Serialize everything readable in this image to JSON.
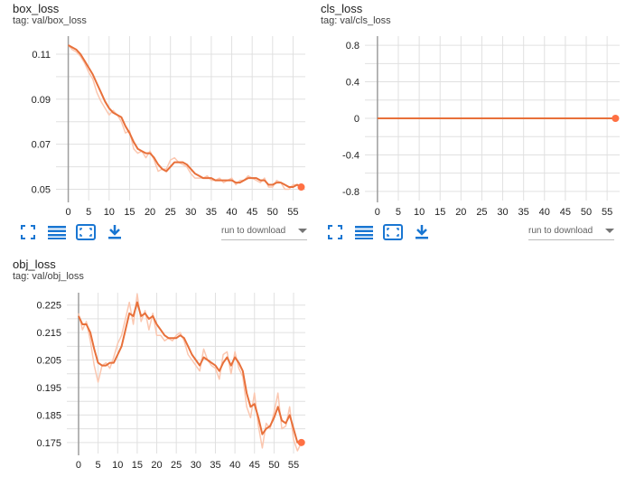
{
  "colors": {
    "accent": "#ff7043",
    "line": "#e8703a",
    "raw": "#fbc7b0",
    "grid": "#e0e0e0",
    "axis": "#9e9e9e",
    "icon": "#1976d2"
  },
  "toolbar_icons": [
    "fullscreen-icon",
    "data-table-icon",
    "fit-domain-icon",
    "download-icon"
  ],
  "charts": [
    {
      "title": "box_loss",
      "tag": "tag: val/box_loss",
      "run_select_label": "run to download"
    },
    {
      "title": "cls_loss",
      "tag": "tag: val/cls_loss",
      "run_select_label": "run to download"
    },
    {
      "title": "obj_loss",
      "tag": "tag: val/obj_loss",
      "run_select_label": null
    }
  ],
  "chart_data": [
    {
      "type": "line",
      "title": "box_loss",
      "xlabel": "",
      "ylabel": "",
      "xlim": [
        -3,
        58
      ],
      "ylim": [
        0.045,
        0.118
      ],
      "xticks": [
        "0",
        "5",
        "10",
        "15",
        "20",
        "25",
        "30",
        "35",
        "40",
        "45",
        "50",
        "55"
      ],
      "yticks": [
        "0.05",
        "0.07",
        "0.09",
        "0.11"
      ],
      "grid": true,
      "series": [
        {
          "role": "smoothed",
          "x": [
            0,
            1,
            2,
            3,
            4,
            5,
            6,
            7,
            8,
            9,
            10,
            11,
            12,
            13,
            14,
            15,
            16,
            17,
            18,
            19,
            20,
            21,
            22,
            23,
            24,
            25,
            26,
            27,
            28,
            29,
            30,
            31,
            32,
            33,
            34,
            35,
            36,
            37,
            38,
            39,
            40,
            41,
            42,
            43,
            44,
            45,
            46,
            47,
            48,
            49,
            50,
            51,
            52,
            53,
            54,
            55,
            56,
            57
          ],
          "y": [
            0.114,
            0.113,
            0.112,
            0.11,
            0.107,
            0.104,
            0.101,
            0.097,
            0.093,
            0.089,
            0.086,
            0.084,
            0.083,
            0.082,
            0.078,
            0.075,
            0.071,
            0.068,
            0.067,
            0.066,
            0.066,
            0.064,
            0.061,
            0.059,
            0.058,
            0.06,
            0.062,
            0.062,
            0.062,
            0.061,
            0.059,
            0.057,
            0.056,
            0.055,
            0.055,
            0.055,
            0.054,
            0.054,
            0.054,
            0.054,
            0.054,
            0.053,
            0.053,
            0.054,
            0.055,
            0.055,
            0.055,
            0.054,
            0.054,
            0.052,
            0.052,
            0.053,
            0.053,
            0.052,
            0.051,
            0.051,
            0.052,
            0.051
          ]
        },
        {
          "role": "raw",
          "x": [
            0,
            1,
            2,
            3,
            4,
            5,
            6,
            7,
            8,
            9,
            10,
            11,
            12,
            13,
            14,
            15,
            16,
            17,
            18,
            19,
            20,
            21,
            22,
            23,
            24,
            25,
            26,
            27,
            28,
            29,
            30,
            31,
            32,
            33,
            34,
            35,
            36,
            37,
            38,
            39,
            40,
            41,
            42,
            43,
            44,
            45,
            46,
            47,
            48,
            49,
            50,
            51,
            52,
            53,
            54,
            55,
            56,
            57
          ],
          "y": [
            0.114,
            0.112,
            0.111,
            0.109,
            0.106,
            0.102,
            0.099,
            0.093,
            0.089,
            0.086,
            0.083,
            0.085,
            0.083,
            0.08,
            0.075,
            0.076,
            0.068,
            0.066,
            0.067,
            0.064,
            0.067,
            0.063,
            0.058,
            0.059,
            0.059,
            0.063,
            0.064,
            0.062,
            0.061,
            0.06,
            0.057,
            0.055,
            0.055,
            0.055,
            0.056,
            0.054,
            0.054,
            0.055,
            0.053,
            0.054,
            0.055,
            0.052,
            0.054,
            0.054,
            0.056,
            0.055,
            0.054,
            0.053,
            0.055,
            0.051,
            0.051,
            0.054,
            0.053,
            0.05,
            0.05,
            0.052,
            0.052,
            0.051
          ]
        }
      ]
    },
    {
      "type": "line",
      "title": "cls_loss",
      "xlabel": "",
      "ylabel": "",
      "xlim": [
        -3,
        58
      ],
      "ylim": [
        -0.9,
        0.9
      ],
      "xticks": [
        "0",
        "5",
        "10",
        "15",
        "20",
        "25",
        "30",
        "35",
        "40",
        "45",
        "50",
        "55"
      ],
      "yticks": [
        "-0.8",
        "-0.4",
        "0",
        "0.4",
        "0.8"
      ],
      "grid": true,
      "series": [
        {
          "role": "smoothed",
          "x": [
            0,
            57
          ],
          "y": [
            0,
            0
          ]
        }
      ]
    },
    {
      "type": "line",
      "title": "obj_loss",
      "xlabel": "",
      "ylabel": "",
      "xlim": [
        -3,
        58
      ],
      "ylim": [
        0.171,
        0.2295
      ],
      "xticks": [
        "0",
        "5",
        "10",
        "15",
        "20",
        "25",
        "30",
        "35",
        "40",
        "45",
        "50",
        "55"
      ],
      "yticks": [
        "0.175",
        "0.185",
        "0.195",
        "0.205",
        "0.215",
        "0.225"
      ],
      "grid": true,
      "series": [
        {
          "role": "smoothed",
          "x": [
            0,
            1,
            2,
            3,
            4,
            5,
            6,
            7,
            8,
            9,
            10,
            11,
            12,
            13,
            14,
            15,
            16,
            17,
            18,
            19,
            20,
            21,
            22,
            23,
            24,
            25,
            26,
            27,
            28,
            29,
            30,
            31,
            32,
            33,
            34,
            35,
            36,
            37,
            38,
            39,
            40,
            41,
            42,
            43,
            44,
            45,
            46,
            47,
            48,
            49,
            50,
            51,
            52,
            53,
            54,
            55,
            56,
            57
          ],
          "y": [
            0.221,
            0.218,
            0.218,
            0.215,
            0.209,
            0.204,
            0.203,
            0.203,
            0.204,
            0.204,
            0.207,
            0.21,
            0.216,
            0.222,
            0.221,
            0.226,
            0.221,
            0.222,
            0.22,
            0.221,
            0.218,
            0.216,
            0.214,
            0.213,
            0.213,
            0.213,
            0.214,
            0.213,
            0.21,
            0.207,
            0.205,
            0.203,
            0.206,
            0.205,
            0.204,
            0.203,
            0.201,
            0.204,
            0.206,
            0.203,
            0.206,
            0.204,
            0.201,
            0.193,
            0.188,
            0.189,
            0.184,
            0.178,
            0.18,
            0.181,
            0.184,
            0.188,
            0.183,
            0.182,
            0.185,
            0.18,
            0.175,
            0.175
          ]
        },
        {
          "role": "raw",
          "x": [
            0,
            1,
            2,
            3,
            4,
            5,
            6,
            7,
            8,
            9,
            10,
            11,
            12,
            13,
            14,
            15,
            16,
            17,
            18,
            19,
            20,
            21,
            22,
            23,
            24,
            25,
            26,
            27,
            28,
            29,
            30,
            31,
            32,
            33,
            34,
            35,
            36,
            37,
            38,
            39,
            40,
            41,
            42,
            43,
            44,
            45,
            46,
            47,
            48,
            49,
            50,
            51,
            52,
            53,
            54,
            55,
            56,
            57
          ],
          "y": [
            0.222,
            0.216,
            0.219,
            0.212,
            0.203,
            0.197,
            0.203,
            0.204,
            0.202,
            0.206,
            0.211,
            0.214,
            0.22,
            0.226,
            0.218,
            0.229,
            0.219,
            0.223,
            0.216,
            0.222,
            0.214,
            0.214,
            0.212,
            0.213,
            0.212,
            0.214,
            0.215,
            0.212,
            0.207,
            0.205,
            0.203,
            0.201,
            0.209,
            0.205,
            0.203,
            0.202,
            0.198,
            0.207,
            0.208,
            0.2,
            0.208,
            0.202,
            0.199,
            0.188,
            0.184,
            0.193,
            0.181,
            0.173,
            0.182,
            0.18,
            0.186,
            0.193,
            0.18,
            0.181,
            0.188,
            0.176,
            0.172,
            0.175
          ]
        }
      ]
    }
  ]
}
